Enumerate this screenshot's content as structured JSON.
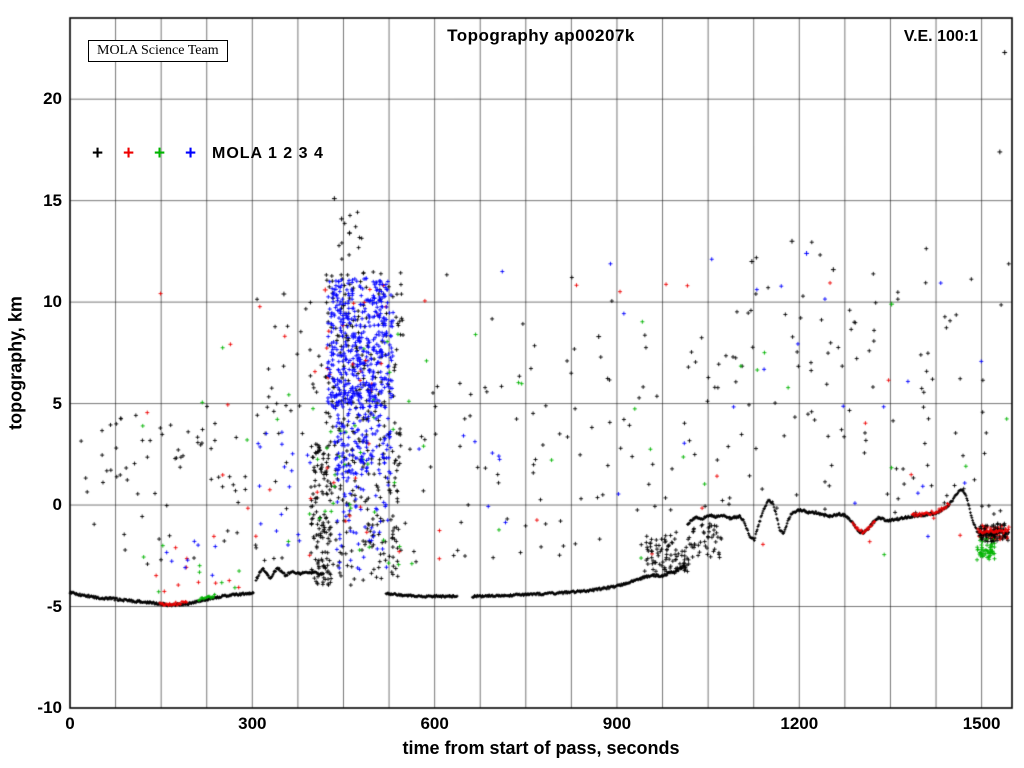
{
  "figure": {
    "background": "#ffffff"
  },
  "chart_data": {
    "type": "scatter",
    "title": "Topography ap00207k",
    "xlabel": "time from start of pass, seconds",
    "ylabel": "topography, km",
    "xlim": [
      0,
      1550
    ],
    "ylim": [
      -10,
      24
    ],
    "x_ticks": [
      0,
      300,
      600,
      900,
      1200,
      1500
    ],
    "x_grid_interval": 75,
    "y_ticks": [
      -10,
      -5,
      0,
      5,
      10,
      15,
      20
    ],
    "grid": true,
    "annotations": {
      "credit": "MOLA Science Team",
      "vertical_exaggeration": "V.E. 100:1"
    },
    "legend": {
      "label": "MOLA 1 2 3 4",
      "marker": "+",
      "position": "upper-left-inside"
    },
    "series": [
      {
        "name": "MOLA 1",
        "color": "#000000"
      },
      {
        "name": "MOLA 2",
        "color": "#ee0000"
      },
      {
        "name": "MOLA 3",
        "color": "#00b400"
      },
      {
        "name": "MOLA 4",
        "color": "#0000ff"
      }
    ],
    "ground_track_segments": [
      [
        [
          0,
          -4.3
        ],
        [
          15,
          -4.4
        ],
        [
          40,
          -4.55
        ],
        [
          70,
          -4.62
        ],
        [
          100,
          -4.72
        ],
        [
          130,
          -4.8
        ],
        [
          150,
          -4.88
        ],
        [
          165,
          -4.93
        ],
        [
          180,
          -4.9
        ],
        [
          195,
          -4.85
        ],
        [
          210,
          -4.75
        ],
        [
          225,
          -4.65
        ],
        [
          240,
          -4.55
        ],
        [
          255,
          -4.48
        ],
        [
          270,
          -4.42
        ],
        [
          285,
          -4.38
        ],
        [
          302,
          -4.33
        ]
      ],
      [
        [
          306,
          -3.7
        ],
        [
          312,
          -3.35
        ],
        [
          318,
          -3.15
        ],
        [
          324,
          -3.4
        ],
        [
          330,
          -3.6
        ],
        [
          336,
          -3.3
        ],
        [
          342,
          -3.1
        ],
        [
          348,
          -3.25
        ],
        [
          354,
          -3.45
        ],
        [
          362,
          -3.35
        ],
        [
          370,
          -3.3
        ],
        [
          378,
          -3.4
        ],
        [
          386,
          -3.3
        ],
        [
          394,
          -3.35
        ],
        [
          402,
          -3.3
        ],
        [
          410,
          -3.4
        ],
        [
          418,
          -3.35
        ]
      ],
      [
        [
          520,
          -4.35
        ],
        [
          535,
          -4.4
        ],
        [
          550,
          -4.45
        ],
        [
          570,
          -4.47
        ],
        [
          590,
          -4.5
        ],
        [
          610,
          -4.5
        ],
        [
          625,
          -4.5
        ],
        [
          638,
          -4.5
        ]
      ],
      [
        [
          662,
          -4.5
        ],
        [
          690,
          -4.48
        ],
        [
          720,
          -4.45
        ],
        [
          750,
          -4.42
        ],
        [
          780,
          -4.38
        ],
        [
          810,
          -4.32
        ],
        [
          840,
          -4.25
        ],
        [
          870,
          -4.15
        ],
        [
          900,
          -4.0
        ],
        [
          915,
          -3.85
        ],
        [
          930,
          -3.7
        ],
        [
          945,
          -3.55
        ],
        [
          960,
          -3.45
        ],
        [
          975,
          -3.5
        ],
        [
          985,
          -3.35
        ],
        [
          995,
          -3.3
        ],
        [
          1005,
          -3.1
        ],
        [
          1012,
          -3.0
        ]
      ],
      [
        [
          1016,
          -1.0
        ],
        [
          1022,
          -0.75
        ],
        [
          1030,
          -0.6
        ],
        [
          1038,
          -0.7
        ],
        [
          1046,
          -0.6
        ],
        [
          1054,
          -0.52
        ],
        [
          1062,
          -0.58
        ],
        [
          1070,
          -0.5
        ],
        [
          1078,
          -0.55
        ],
        [
          1086,
          -0.65
        ],
        [
          1094,
          -0.6
        ],
        [
          1102,
          -0.55
        ],
        [
          1108,
          -0.75
        ],
        [
          1114,
          -1.2
        ],
        [
          1120,
          -1.65
        ],
        [
          1126,
          -1.7
        ],
        [
          1132,
          -1.1
        ],
        [
          1138,
          -0.5
        ],
        [
          1144,
          -0.05
        ],
        [
          1150,
          0.25
        ],
        [
          1156,
          0.1
        ],
        [
          1162,
          -0.45
        ],
        [
          1168,
          -1.2
        ],
        [
          1174,
          -1.45
        ],
        [
          1180,
          -0.9
        ],
        [
          1186,
          -0.45
        ],
        [
          1194,
          -0.3
        ],
        [
          1202,
          -0.25
        ],
        [
          1210,
          -0.3
        ],
        [
          1218,
          -0.4
        ],
        [
          1226,
          -0.35
        ],
        [
          1234,
          -0.45
        ],
        [
          1242,
          -0.5
        ],
        [
          1250,
          -0.55
        ],
        [
          1258,
          -0.5
        ],
        [
          1266,
          -0.45
        ],
        [
          1274,
          -0.5
        ],
        [
          1282,
          -0.65
        ],
        [
          1290,
          -0.95
        ],
        [
          1298,
          -1.3
        ],
        [
          1306,
          -1.35
        ],
        [
          1314,
          -1.15
        ],
        [
          1322,
          -0.85
        ],
        [
          1330,
          -0.65
        ],
        [
          1338,
          -0.7
        ],
        [
          1346,
          -0.78
        ],
        [
          1354,
          -0.72
        ],
        [
          1362,
          -0.68
        ],
        [
          1370,
          -0.64
        ],
        [
          1378,
          -0.6
        ],
        [
          1386,
          -0.56
        ],
        [
          1394,
          -0.52
        ],
        [
          1402,
          -0.5
        ],
        [
          1410,
          -0.48
        ],
        [
          1418,
          -0.44
        ],
        [
          1426,
          -0.38
        ],
        [
          1434,
          -0.28
        ],
        [
          1442,
          -0.12
        ],
        [
          1450,
          0.15
        ],
        [
          1458,
          0.5
        ],
        [
          1466,
          0.78
        ],
        [
          1472,
          0.6
        ],
        [
          1478,
          0.1
        ],
        [
          1484,
          -0.6
        ],
        [
          1490,
          -1.15
        ],
        [
          1496,
          -1.45
        ],
        [
          1504,
          -1.4
        ],
        [
          1512,
          -1.35
        ],
        [
          1520,
          -1.45
        ],
        [
          1528,
          -1.3
        ],
        [
          1536,
          -1.4
        ],
        [
          1545,
          -1.35
        ]
      ]
    ],
    "track_overlays": [
      {
        "series": 1,
        "t": [
          148,
          192
        ],
        "dy": 0.05
      },
      {
        "series": 2,
        "t": [
          212,
          238
        ],
        "dy": 0.08
      },
      {
        "series": 1,
        "t": [
          1288,
          1324
        ],
        "dy": 0.0
      },
      {
        "series": 1,
        "t": [
          1386,
          1446
        ],
        "dy": 0.05
      },
      {
        "series": 1,
        "t": [
          1494,
          1544
        ],
        "dy": 0.1
      },
      {
        "series": 2,
        "t": [
          1494,
          1520
        ],
        "dy": -0.9
      }
    ],
    "noise_clusters": [
      {
        "series": 0,
        "t": [
          5,
          395
        ],
        "y": [
          0.5,
          5.2
        ],
        "n": 60
      },
      {
        "series": 0,
        "t": [
          5,
          395
        ],
        "y": [
          -3.0,
          0.5
        ],
        "n": 20
      },
      {
        "series": 0,
        "t": [
          300,
          415
        ],
        "y": [
          4.5,
          11.0
        ],
        "n": 22
      },
      {
        "series": 0,
        "t": [
          396,
          430
        ],
        "y": [
          -4.0,
          3.0
        ],
        "n": 130
      },
      {
        "series": 0,
        "t": [
          420,
          548
        ],
        "y": [
          -4.0,
          11.5
        ],
        "n": 330
      },
      {
        "series": 0,
        "t": [
          425,
          480
        ],
        "y": [
          11.5,
          14.5
        ],
        "n": 12
      },
      {
        "series": 1,
        "t": [
          390,
          545
        ],
        "y": [
          -3.5,
          11.0
        ],
        "n": 28
      },
      {
        "series": 2,
        "t": [
          390,
          545
        ],
        "y": [
          -3.0,
          8.5
        ],
        "n": 30
      },
      {
        "series": 3,
        "t": [
          424,
          532
        ],
        "y": [
          4.8,
          11.2
        ],
        "n": 520
      },
      {
        "series": 3,
        "t": [
          432,
          528
        ],
        "y": [
          1.5,
          4.8
        ],
        "n": 140
      },
      {
        "series": 3,
        "t": [
          438,
          524
        ],
        "y": [
          -3.2,
          1.5
        ],
        "n": 55
      },
      {
        "series": 3,
        "t": [
          300,
          400
        ],
        "y": [
          -2.0,
          5.0
        ],
        "n": 18
      },
      {
        "series": 0,
        "t": [
          550,
          1000
        ],
        "y": [
          -3.2,
          6.5
        ],
        "n": 80
      },
      {
        "series": 0,
        "t": [
          560,
          1000
        ],
        "y": [
          6.5,
          11.5
        ],
        "n": 12
      },
      {
        "series": 0,
        "t": [
          1000,
          1545
        ],
        "y": [
          -0.5,
          9.5
        ],
        "n": 110
      },
      {
        "series": 0,
        "t": [
          1040,
          1545
        ],
        "y": [
          9.5,
          13.0
        ],
        "n": 18
      },
      {
        "series": 1,
        "t": [
          60,
          1545
        ],
        "y": [
          -3.0,
          11.0
        ],
        "n": 34
      },
      {
        "series": 2,
        "t": [
          80,
          1545
        ],
        "y": [
          -3.0,
          10.0
        ],
        "n": 36
      },
      {
        "series": 3,
        "t": [
          555,
          1545
        ],
        "y": [
          -2.0,
          12.5
        ],
        "n": 30
      },
      {
        "series": 1,
        "t": [
          90,
          280
        ],
        "y": [
          -4.3,
          -2.0
        ],
        "n": 10
      },
      {
        "series": 2,
        "t": [
          90,
          280
        ],
        "y": [
          -4.3,
          -2.0
        ],
        "n": 8
      },
      {
        "series": 3,
        "t": [
          150,
          300
        ],
        "y": [
          -4.0,
          -1.5
        ],
        "n": 8
      },
      {
        "series": 0,
        "t": [
          945,
          1020
        ],
        "y": [
          -3.3,
          -1.5
        ],
        "n": 90
      },
      {
        "series": 0,
        "t": [
          1022,
          1072
        ],
        "y": [
          -2.6,
          -0.9
        ],
        "n": 45
      },
      {
        "series": 1,
        "t": [
          1495,
          1545
        ],
        "y": [
          -1.7,
          -1.0
        ],
        "n": 70
      },
      {
        "series": 2,
        "t": [
          1492,
          1522
        ],
        "y": [
          -2.7,
          -1.5
        ],
        "n": 45
      },
      {
        "series": 0,
        "t": [
          1495,
          1545
        ],
        "y": [
          -1.8,
          -0.9
        ],
        "n": 60
      }
    ],
    "outlier_points": [
      {
        "series": 0,
        "t": 435,
        "y": 15.1
      },
      {
        "series": 0,
        "t": 447,
        "y": 14.1
      },
      {
        "series": 0,
        "t": 460,
        "y": 13.4
      },
      {
        "series": 0,
        "t": 352,
        "y": 10.4
      },
      {
        "series": 1,
        "t": 420,
        "y": 10.6
      },
      {
        "series": 0,
        "t": 870,
        "y": 8.3
      },
      {
        "series": 0,
        "t": 1122,
        "y": 12.0
      },
      {
        "series": 0,
        "t": 1188,
        "y": 13.0
      },
      {
        "series": 3,
        "t": 1212,
        "y": 12.4
      },
      {
        "series": 0,
        "t": 1256,
        "y": 11.6
      },
      {
        "series": 2,
        "t": 1352,
        "y": 9.9
      },
      {
        "series": 0,
        "t": 1530,
        "y": 17.4
      },
      {
        "series": 0,
        "t": 1538,
        "y": 22.3
      }
    ]
  }
}
